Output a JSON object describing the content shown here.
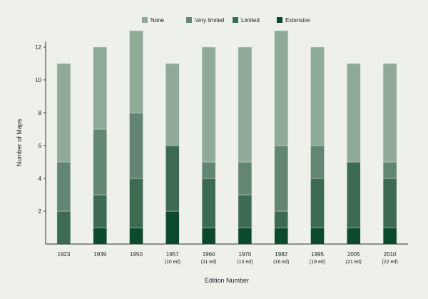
{
  "chart_data": {
    "type": "bar",
    "stacked": true,
    "categories": [
      "1923",
      "1939",
      "1950",
      "1957",
      "1960",
      "1970",
      "1982",
      "1995",
      "2005",
      "2010"
    ],
    "category_sublabels": [
      "",
      "",
      "",
      "(10 ed)",
      "(11 ed)",
      "(13 ed)",
      "(16 ed)",
      "(19 ed)",
      "(21 ed)",
      "(22 ed)"
    ],
    "series": [
      {
        "name": "Extensive",
        "color": "#0b4a2a",
        "values": [
          0,
          1,
          1,
          2,
          1,
          1,
          1,
          1,
          1,
          1
        ]
      },
      {
        "name": "Limited",
        "color": "#3d6b52",
        "values": [
          2,
          2,
          3,
          4,
          3,
          2,
          1,
          3,
          4,
          3
        ]
      },
      {
        "name": "Very limited",
        "color": "#628672",
        "values": [
          3,
          4,
          4,
          0,
          1,
          2,
          4,
          2,
          0,
          1
        ]
      },
      {
        "name": "None",
        "color": "#8fab98",
        "values": [
          6,
          5,
          5,
          5,
          7,
          7,
          7,
          6,
          6,
          6
        ]
      }
    ],
    "legend_order": [
      "None",
      "Very limited",
      "Limited",
      "Extensive"
    ],
    "legend_position": "top",
    "xlabel": "Edition Number",
    "ylabel": "Number of Maps",
    "ylim": [
      0,
      13
    ],
    "yticks": [
      2,
      4,
      6,
      8,
      10,
      12
    ],
    "grid": false
  }
}
